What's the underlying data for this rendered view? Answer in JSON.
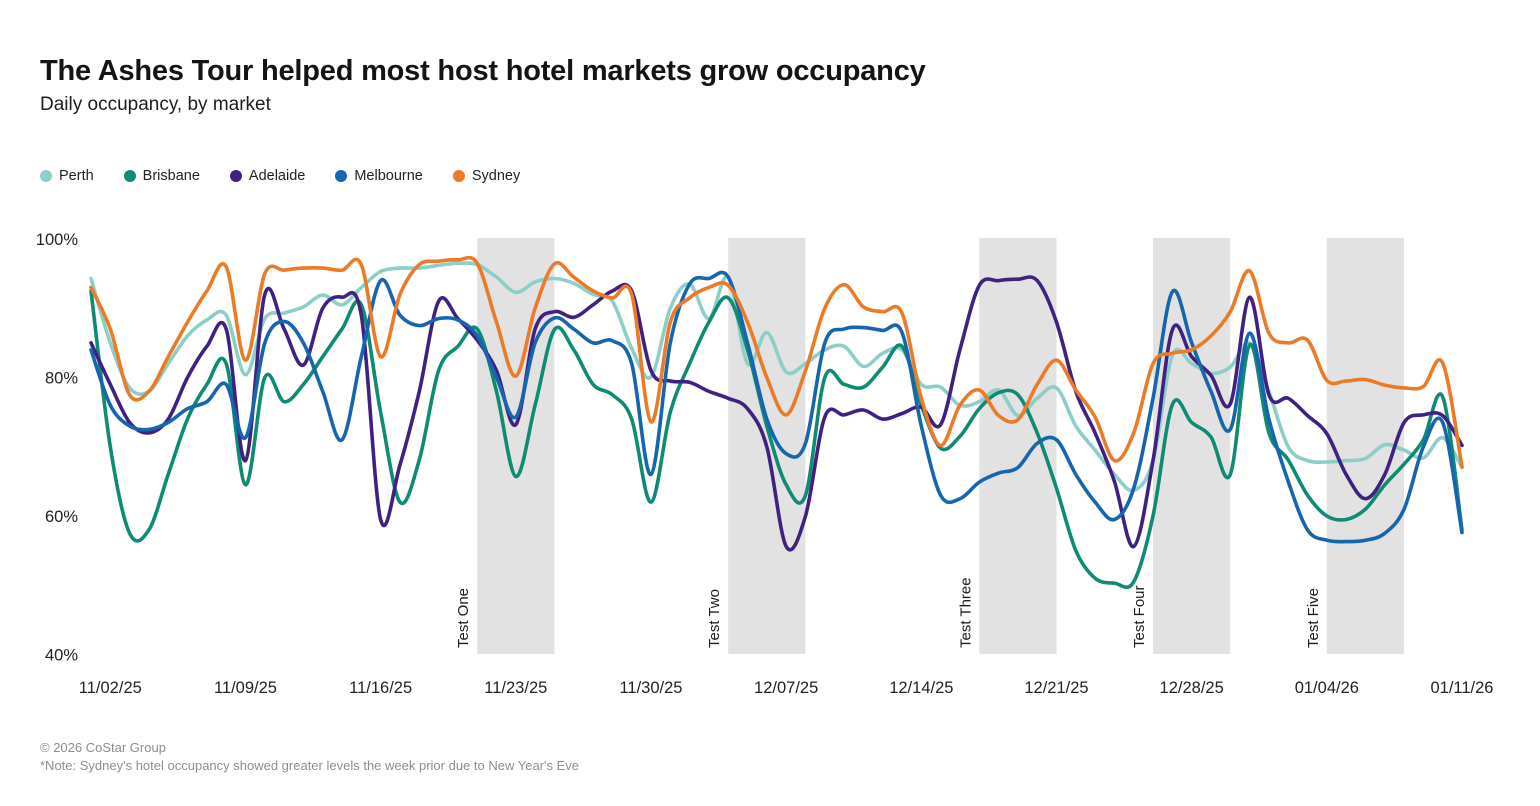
{
  "header": {
    "title": "The Ashes Tour helped most host hotel markets grow occupancy",
    "subtitle": "Daily occupancy, by market"
  },
  "footer": {
    "copyright": "© 2026 CoStar Group",
    "note": "*Note: Sydney's hotel occupancy showed greater levels the week prior due to New Year's Eve"
  },
  "chart_data": {
    "type": "line",
    "title": "The Ashes Tour helped most host hotel markets grow occupancy",
    "subtitle": "Daily occupancy, by market",
    "x_unit": "day",
    "x_start_date": "11/01/25",
    "x_end_date": "01/11/26",
    "x_tick_labels": [
      "11/02/25",
      "11/09/25",
      "11/16/25",
      "11/23/25",
      "11/30/25",
      "12/07/25",
      "12/14/25",
      "12/21/25",
      "12/28/25",
      "01/04/26",
      "01/11/26"
    ],
    "x_tick_day_indices": [
      1,
      8,
      15,
      22,
      29,
      36,
      43,
      50,
      57,
      64,
      71
    ],
    "ylim": [
      40,
      100
    ],
    "y_ticks": [
      100,
      80,
      60,
      40
    ],
    "y_tick_labels": [
      "100%",
      "80%",
      "60%",
      "40%"
    ],
    "grid": false,
    "legend_position": "top-left",
    "band_color": "#e2e2e2",
    "highlight_bands": [
      {
        "label": "Test One",
        "start_day": 20,
        "end_day": 24
      },
      {
        "label": "Test Two",
        "start_day": 33,
        "end_day": 37
      },
      {
        "label": "Test Three",
        "start_day": 46,
        "end_day": 50
      },
      {
        "label": "Test Four",
        "start_day": 55,
        "end_day": 59
      },
      {
        "label": "Test Five",
        "start_day": 64,
        "end_day": 68
      }
    ],
    "series": [
      {
        "name": "Perth",
        "color": "#8ccfc9",
        "values": [
          94.3,
          85,
          78.5,
          78,
          82,
          86,
          88.3,
          89,
          80.4,
          88.5,
          89.3,
          90.2,
          91.9,
          90.5,
          93,
          95.3,
          95.8,
          95.8,
          96.2,
          96.5,
          96.3,
          94.5,
          92.3,
          93.8,
          94.3,
          93.6,
          92,
          91,
          84.2,
          80.1,
          90,
          93.5,
          88.5,
          94.5,
          82,
          86.5,
          80.8,
          82,
          84,
          84.5,
          81.6,
          83.5,
          84,
          79,
          78.6,
          76,
          76.5,
          78.2,
          74.5,
          77,
          78.5,
          73,
          69.5,
          66,
          63.7,
          68,
          83.2,
          82,
          80.6,
          81.5,
          85,
          78,
          70,
          68,
          67.8,
          68,
          68.3,
          70.3,
          69.5,
          68.4,
          71.3,
          67
        ]
      },
      {
        "name": "Brisbane",
        "color": "#0e8b74",
        "values": [
          92.5,
          70,
          57.5,
          58,
          66,
          74,
          79,
          82,
          64.5,
          80,
          76.5,
          79,
          83,
          87,
          90.5,
          75,
          62,
          68.1,
          81,
          84.5,
          87,
          78,
          65.7,
          76,
          86.9,
          84,
          79,
          77.5,
          74,
          62,
          75,
          82,
          88,
          91.5,
          84,
          73,
          64.5,
          63,
          80,
          79,
          78.6,
          81.5,
          84.5,
          76,
          69.8,
          71.5,
          75.5,
          77.8,
          77.5,
          72,
          64,
          55,
          51,
          50.3,
          50.5,
          60,
          76.1,
          73.5,
          71.4,
          66,
          84.7,
          72,
          68.1,
          63,
          60,
          59.5,
          61,
          64.5,
          67.5,
          71,
          77.2,
          58
        ]
      },
      {
        "name": "Adelaide",
        "color": "#3f2182",
        "values": [
          85,
          79,
          73.5,
          72,
          74,
          80,
          84.5,
          87,
          68,
          92,
          87,
          81.8,
          90,
          91.6,
          89,
          59.5,
          67.4,
          78,
          91,
          88.5,
          85.4,
          81,
          73.2,
          87,
          89.5,
          88.7,
          90.5,
          92.5,
          92.5,
          81,
          79.5,
          79.3,
          78,
          77,
          75.5,
          70,
          55.6,
          60,
          74.3,
          74.6,
          75.3,
          74,
          74.8,
          75.7,
          73.2,
          84,
          93.3,
          94,
          94.2,
          94,
          88,
          78,
          72,
          65,
          55.6,
          68,
          86.9,
          83,
          80.3,
          76.2,
          91.6,
          77.5,
          77,
          74.5,
          71.9,
          66,
          62.5,
          66,
          73.5,
          74.6,
          74.5,
          70.2
        ]
      },
      {
        "name": "Melbourne",
        "color": "#1565af",
        "values": [
          84,
          76,
          73,
          72.5,
          73.5,
          75.5,
          76.5,
          79,
          71.3,
          85,
          88.1,
          85,
          78,
          71,
          83,
          94,
          89,
          87.5,
          88.5,
          88.3,
          86,
          80,
          74.3,
          85,
          88.6,
          87,
          85,
          85.3,
          82,
          66,
          85,
          93.5,
          94.3,
          94.5,
          85,
          74,
          69,
          70.5,
          85,
          87,
          87.2,
          86.8,
          86.5,
          73,
          63,
          62.5,
          64.9,
          66.2,
          67,
          70.5,
          71,
          66,
          62,
          59.5,
          64,
          77,
          92.4,
          85,
          78,
          72.5,
          86.4,
          74,
          65,
          58,
          56.5,
          56.3,
          56.5,
          57.5,
          61,
          70,
          73.5,
          57.6
        ]
      },
      {
        "name": "Sydney",
        "color": "#ec7b27",
        "values": [
          93,
          87,
          77.5,
          78,
          83,
          88,
          92.5,
          96,
          82.5,
          95,
          95.5,
          95.8,
          95.8,
          95.5,
          96.3,
          83,
          92,
          96.3,
          96.8,
          97,
          96.5,
          88,
          80.2,
          90,
          96.4,
          94.5,
          92.5,
          91.5,
          92,
          73.6,
          88,
          91.5,
          93,
          93.3,
          88,
          80,
          74.6,
          81,
          90,
          93.4,
          90.2,
          89.5,
          89.3,
          77,
          70.2,
          76,
          78.2,
          74.5,
          73.9,
          79,
          82.5,
          78.2,
          74.3,
          68,
          72,
          82,
          83.5,
          84,
          86,
          89.5,
          95.4,
          86.4,
          85,
          85.4,
          79.6,
          79.5,
          79.7,
          78.9,
          78.5,
          78.7,
          82.1,
          67.1
        ]
      }
    ]
  }
}
